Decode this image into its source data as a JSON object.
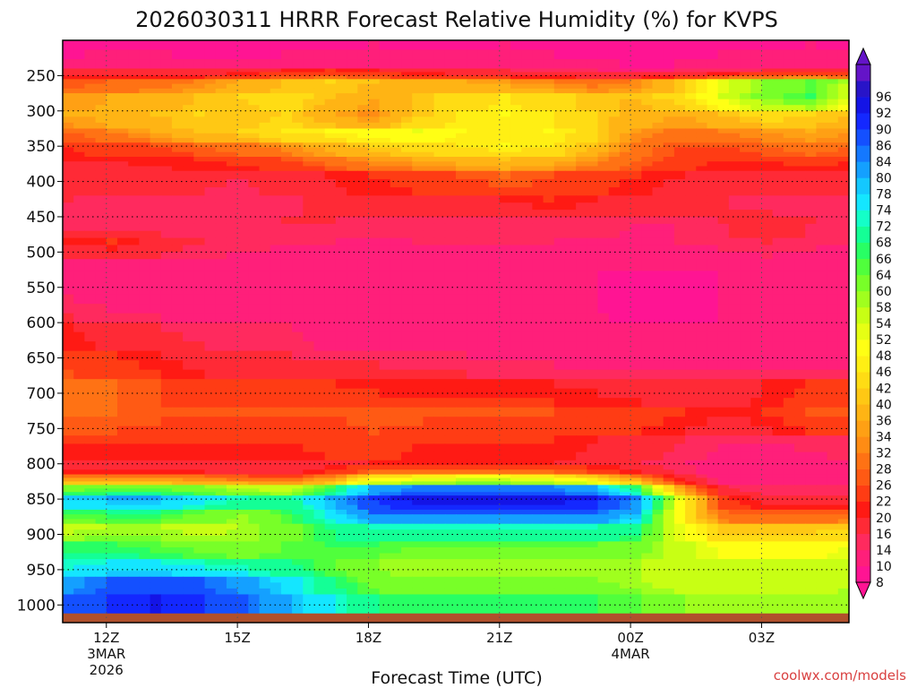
{
  "chart_data": {
    "type": "heatmap",
    "title": "2026030311 HRRR Forecast Relative Humidity (%) for KVPS",
    "xlabel": "Forecast Time (UTC)",
    "ylabel": "",
    "credit": "coolwx.com/models",
    "y_ticks": [
      "250",
      "300",
      "350",
      "400",
      "450",
      "500",
      "550",
      "600",
      "650",
      "700",
      "750",
      "800",
      "850",
      "900",
      "950",
      "1000"
    ],
    "y_range": [
      200,
      1025
    ],
    "x_ticks": [
      {
        "hour": 0,
        "label": "12Z",
        "sub1": "3MAR",
        "sub2": "2026"
      },
      {
        "hour": 3,
        "label": "15Z",
        "sub1": "",
        "sub2": ""
      },
      {
        "hour": 6,
        "label": "18Z",
        "sub1": "",
        "sub2": ""
      },
      {
        "hour": 9,
        "label": "21Z",
        "sub1": "",
        "sub2": ""
      },
      {
        "hour": 12,
        "label": "00Z",
        "sub1": "4MAR",
        "sub2": ""
      },
      {
        "hour": 15,
        "label": "03Z",
        "sub1": "",
        "sub2": ""
      }
    ],
    "x_range_hours": [
      -1,
      17
    ],
    "grid": true,
    "colorbar": {
      "levels": [
        8,
        10,
        14,
        16,
        20,
        22,
        26,
        28,
        32,
        34,
        36,
        40,
        42,
        46,
        48,
        52,
        54,
        58,
        60,
        64,
        66,
        68,
        72,
        74,
        78,
        80,
        84,
        86,
        90,
        92,
        96
      ],
      "colors": [
        "#ff1493",
        "#ff1f7a",
        "#ff2a5e",
        "#ff2a36",
        "#ff1a14",
        "#ff3c14",
        "#ff5a14",
        "#ff7214",
        "#ff8c14",
        "#ffa014",
        "#ffb414",
        "#ffc814",
        "#ffdc14",
        "#ffef14",
        "#ffff14",
        "#e6ff14",
        "#c8ff14",
        "#a0ff1e",
        "#78ff28",
        "#50ff3c",
        "#28ff64",
        "#14ff96",
        "#14ffc8",
        "#14e6ff",
        "#14c8ff",
        "#14a0ff",
        "#1478ff",
        "#1450ff",
        "#1428ff",
        "#1414e6",
        "#2814c8",
        "#6414c8"
      ],
      "under_color": "#ff1493",
      "over_color": "#6414c8"
    },
    "layers": [
      {
        "p_top": 200,
        "p_bot": 240,
        "rh": [
          8,
          9,
          9,
          8,
          8,
          8,
          9,
          10,
          9,
          9,
          10,
          9,
          9,
          8,
          8,
          9,
          9,
          10,
          9
        ]
      },
      {
        "p_top": 240,
        "p_bot": 255,
        "rh": [
          18,
          17,
          17,
          16,
          18,
          20,
          22,
          20,
          18,
          16,
          16,
          15,
          14,
          13,
          14,
          15,
          16,
          18,
          17
        ]
      },
      {
        "p_top": 255,
        "p_bot": 275,
        "rh": [
          26,
          28,
          30,
          32,
          36,
          40,
          42,
          40,
          38,
          36,
          34,
          32,
          30,
          32,
          40,
          52,
          60,
          64,
          56
        ]
      },
      {
        "p_top": 275,
        "p_bot": 300,
        "rh": [
          34,
          36,
          38,
          40,
          42,
          44,
          40,
          36,
          40,
          44,
          46,
          44,
          40,
          40,
          44,
          54,
          62,
          66,
          52
        ]
      },
      {
        "p_top": 300,
        "p_bot": 325,
        "rh": [
          36,
          38,
          40,
          42,
          40,
          42,
          36,
          32,
          40,
          46,
          48,
          46,
          42,
          38,
          36,
          40,
          44,
          42,
          40
        ]
      },
      {
        "p_top": 325,
        "p_bot": 345,
        "rh": [
          28,
          32,
          36,
          40,
          42,
          46,
          48,
          50,
          52,
          48,
          46,
          48,
          44,
          34,
          30,
          32,
          34,
          36,
          34
        ]
      },
      {
        "p_top": 345,
        "p_bot": 365,
        "rh": [
          22,
          24,
          26,
          28,
          30,
          34,
          38,
          42,
          44,
          46,
          48,
          46,
          40,
          30,
          26,
          26,
          28,
          30,
          28
        ]
      },
      {
        "p_top": 365,
        "p_bot": 385,
        "rh": [
          20,
          20,
          21,
          22,
          24,
          26,
          30,
          34,
          36,
          38,
          40,
          38,
          34,
          28,
          24,
          22,
          22,
          24,
          22
        ]
      },
      {
        "p_top": 385,
        "p_bot": 420,
        "rh": [
          18,
          18,
          17,
          17,
          16,
          18,
          20,
          22,
          24,
          26,
          28,
          26,
          24,
          22,
          20,
          18,
          18,
          17,
          17
        ]
      },
      {
        "p_top": 420,
        "p_bot": 450,
        "rh": [
          16,
          15,
          15,
          14,
          14,
          15,
          17,
          19,
          18,
          18,
          20,
          22,
          20,
          18,
          17,
          16,
          15,
          15,
          14
        ]
      },
      {
        "p_top": 450,
        "p_bot": 480,
        "rh": [
          14,
          14,
          15,
          15,
          15,
          16,
          16,
          15,
          14,
          14,
          14,
          15,
          15,
          14,
          14,
          16,
          18,
          16,
          15
        ]
      },
      {
        "p_top": 480,
        "p_bot": 510,
        "rh": [
          20,
          22,
          18,
          16,
          15,
          14,
          14,
          13,
          14,
          14,
          14,
          14,
          13,
          13,
          14,
          15,
          16,
          15,
          14
        ]
      },
      {
        "p_top": 510,
        "p_bot": 560,
        "rh": [
          12,
          12,
          12,
          11,
          11,
          12,
          12,
          12,
          11,
          11,
          10,
          10,
          10,
          10,
          10,
          10,
          10,
          10,
          10
        ]
      },
      {
        "p_top": 560,
        "p_bot": 600,
        "rh": [
          14,
          13,
          13,
          12,
          12,
          12,
          12,
          11,
          11,
          10,
          10,
          10,
          10,
          9,
          9,
          10,
          10,
          10,
          10
        ]
      },
      {
        "p_top": 600,
        "p_bot": 640,
        "rh": [
          20,
          18,
          16,
          15,
          14,
          14,
          13,
          13,
          12,
          12,
          11,
          11,
          11,
          10,
          10,
          10,
          10,
          10,
          10
        ]
      },
      {
        "p_top": 640,
        "p_bot": 680,
        "rh": [
          24,
          22,
          20,
          18,
          17,
          16,
          15,
          15,
          14,
          14,
          13,
          13,
          12,
          12,
          12,
          12,
          12,
          12,
          12
        ]
      },
      {
        "p_top": 680,
        "p_bot": 720,
        "rh": [
          30,
          28,
          26,
          24,
          24,
          22,
          22,
          21,
          20,
          20,
          20,
          20,
          19,
          18,
          18,
          18,
          20,
          22,
          22
        ]
      },
      {
        "p_top": 720,
        "p_bot": 760,
        "rh": [
          28,
          28,
          27,
          26,
          26,
          26,
          26,
          27,
          27,
          26,
          26,
          26,
          25,
          24,
          22,
          20,
          22,
          26,
          28
        ]
      },
      {
        "p_top": 760,
        "p_bot": 795,
        "rh": [
          22,
          22,
          22,
          22,
          22,
          22,
          24,
          24,
          22,
          22,
          22,
          22,
          20,
          18,
          16,
          14,
          14,
          15,
          16
        ]
      },
      {
        "p_top": 795,
        "p_bot": 815,
        "rh": [
          16,
          16,
          16,
          16,
          16,
          16,
          18,
          20,
          20,
          20,
          20,
          20,
          18,
          16,
          14,
          12,
          11,
          11,
          12
        ]
      },
      {
        "p_top": 815,
        "p_bot": 830,
        "rh": [
          30,
          30,
          30,
          28,
          26,
          24,
          30,
          44,
          46,
          48,
          48,
          46,
          40,
          30,
          18,
          12,
          10,
          10,
          12
        ]
      },
      {
        "p_top": 830,
        "p_bot": 845,
        "rh": [
          60,
          62,
          62,
          60,
          56,
          54,
          64,
          80,
          84,
          84,
          84,
          84,
          80,
          66,
          34,
          16,
          14,
          14,
          14
        ]
      },
      {
        "p_top": 845,
        "p_bot": 865,
        "rh": [
          78,
          80,
          80,
          76,
          72,
          70,
          80,
          90,
          94,
          94,
          94,
          94,
          92,
          84,
          52,
          22,
          18,
          18,
          18
        ]
      },
      {
        "p_top": 865,
        "p_bot": 885,
        "rh": [
          66,
          68,
          68,
          64,
          60,
          66,
          76,
          86,
          86,
          86,
          86,
          86,
          86,
          80,
          48,
          28,
          26,
          26,
          28
        ]
      },
      {
        "p_top": 885,
        "p_bot": 910,
        "rh": [
          56,
          58,
          58,
          56,
          58,
          62,
          68,
          72,
          72,
          72,
          72,
          72,
          72,
          70,
          52,
          40,
          40,
          40,
          42
        ]
      },
      {
        "p_top": 910,
        "p_bot": 935,
        "rh": [
          66,
          66,
          64,
          62,
          60,
          64,
          66,
          66,
          64,
          64,
          64,
          64,
          64,
          62,
          56,
          50,
          50,
          50,
          52
        ]
      },
      {
        "p_top": 935,
        "p_bot": 960,
        "rh": [
          72,
          74,
          74,
          72,
          70,
          68,
          64,
          60,
          58,
          58,
          58,
          58,
          58,
          58,
          56,
          54,
          54,
          54,
          56
        ]
      },
      {
        "p_top": 960,
        "p_bot": 985,
        "rh": [
          82,
          86,
          88,
          86,
          82,
          76,
          68,
          62,
          60,
          60,
          60,
          60,
          60,
          58,
          56,
          56,
          56,
          56,
          58
        ]
      },
      {
        "p_top": 985,
        "p_bot": 1012,
        "rh": [
          86,
          90,
          92,
          90,
          86,
          80,
          74,
          68,
          66,
          66,
          66,
          66,
          66,
          64,
          60,
          58,
          58,
          58,
          60
        ]
      }
    ],
    "ground_p": 1012,
    "ground_color": "#b0502c"
  }
}
